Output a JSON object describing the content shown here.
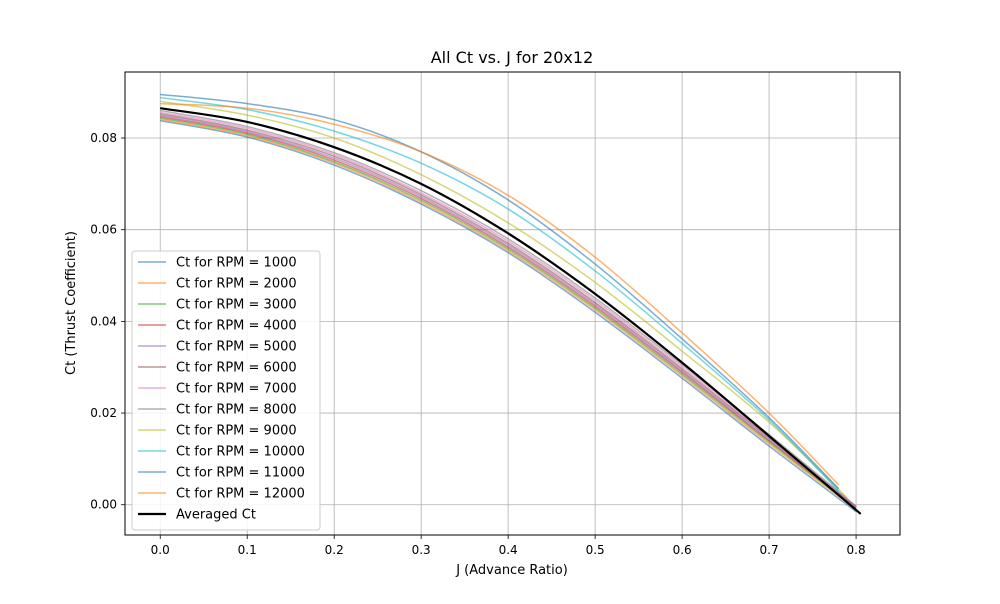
{
  "chart_data": {
    "type": "line",
    "title": "All Ct vs. J for 20x12",
    "xlabel": "J (Advance Ratio)",
    "ylabel": "Ct (Thrust Coefficient)",
    "xlim": [
      -0.0405,
      0.8505
    ],
    "ylim": [
      -0.0066,
      0.0944
    ],
    "xticks": [
      0.0,
      0.1,
      0.2,
      0.3,
      0.4,
      0.5,
      0.6,
      0.7,
      0.8
    ],
    "xtick_labels": [
      "0.0",
      "0.1",
      "0.2",
      "0.3",
      "0.4",
      "0.5",
      "0.6",
      "0.7",
      "0.8"
    ],
    "yticks": [
      0.0,
      0.02,
      0.04,
      0.06,
      0.08
    ],
    "ytick_labels": [
      "0.00",
      "0.02",
      "0.04",
      "0.06",
      "0.08"
    ],
    "grid": true,
    "legend_position": "lower-left",
    "series": [
      {
        "name": "Ct for RPM = 1000",
        "color": "#1f77b4",
        "x": [
          0.0,
          0.1,
          0.2,
          0.3,
          0.4,
          0.5,
          0.6,
          0.7,
          0.8
        ],
        "y": [
          0.0838,
          0.0802,
          0.0741,
          0.0656,
          0.055,
          0.042,
          0.0276,
          0.0128,
          -0.0015
        ]
      },
      {
        "name": "Ct for RPM = 2000",
        "color": "#ff7f0e",
        "x": [
          0.0,
          0.1,
          0.2,
          0.3,
          0.4,
          0.5,
          0.6,
          0.7,
          0.8
        ],
        "y": [
          0.0841,
          0.0805,
          0.0745,
          0.066,
          0.0554,
          0.0425,
          0.0281,
          0.0133,
          -0.001
        ]
      },
      {
        "name": "Ct for RPM = 3000",
        "color": "#2ca02c",
        "x": [
          0.0,
          0.1,
          0.2,
          0.3,
          0.4,
          0.5,
          0.6,
          0.7,
          0.8
        ],
        "y": [
          0.0844,
          0.0808,
          0.0748,
          0.0664,
          0.0558,
          0.0429,
          0.0285,
          0.0137,
          -0.0008
        ]
      },
      {
        "name": "Ct for RPM = 4000",
        "color": "#d62728",
        "x": [
          0.0,
          0.1,
          0.2,
          0.3,
          0.4,
          0.5,
          0.6,
          0.7,
          0.8
        ],
        "y": [
          0.0847,
          0.0811,
          0.0752,
          0.0668,
          0.0562,
          0.0433,
          0.0289,
          0.014,
          -0.0007
        ]
      },
      {
        "name": "Ct for RPM = 5000",
        "color": "#9467bd",
        "x": [
          0.0,
          0.1,
          0.2,
          0.3,
          0.4,
          0.5,
          0.6,
          0.7,
          0.8
        ],
        "y": [
          0.085,
          0.0814,
          0.0756,
          0.0672,
          0.0566,
          0.0437,
          0.0292,
          0.0143,
          -0.0006
        ]
      },
      {
        "name": "Ct for RPM = 6000",
        "color": "#8c564b",
        "x": [
          0.0,
          0.1,
          0.2,
          0.3,
          0.4,
          0.5,
          0.6,
          0.7,
          0.8
        ],
        "y": [
          0.0853,
          0.0817,
          0.076,
          0.0676,
          0.057,
          0.0441,
          0.0296,
          0.0146,
          -0.0005
        ]
      },
      {
        "name": "Ct for RPM = 7000",
        "color": "#e377c2",
        "x": [
          0.0,
          0.1,
          0.2,
          0.3,
          0.4,
          0.5,
          0.6,
          0.7,
          0.8
        ],
        "y": [
          0.0856,
          0.0821,
          0.0764,
          0.068,
          0.0575,
          0.0446,
          0.03,
          0.0149,
          -0.0004
        ]
      },
      {
        "name": "Ct for RPM = 8000",
        "color": "#7f7f7f",
        "x": [
          0.0,
          0.1,
          0.2,
          0.3,
          0.4,
          0.5,
          0.6,
          0.7,
          0.8
        ],
        "y": [
          0.086,
          0.0825,
          0.0768,
          0.0685,
          0.058,
          0.0451,
          0.0305,
          0.0153,
          -0.0003
        ]
      },
      {
        "name": "Ct for RPM = 9000",
        "color": "#bcbd22",
        "x": [
          0.0,
          0.1,
          0.2,
          0.3,
          0.4,
          0.5,
          0.6,
          0.7,
          0.79
        ],
        "y": [
          0.088,
          0.085,
          0.08,
          0.072,
          0.0615,
          0.0485,
          0.0335,
          0.018,
          0.0015
        ]
      },
      {
        "name": "Ct for RPM = 10000",
        "color": "#17becf",
        "x": [
          0.0,
          0.1,
          0.2,
          0.3,
          0.4,
          0.5,
          0.6,
          0.7,
          0.78
        ],
        "y": [
          0.0888,
          0.0862,
          0.0815,
          0.0745,
          0.0645,
          0.051,
          0.0352,
          0.0185,
          0.003
        ]
      },
      {
        "name": "Ct for RPM = 11000",
        "color": "#1f77b4",
        "x": [
          0.0,
          0.1,
          0.2,
          0.3,
          0.4,
          0.5,
          0.6,
          0.7,
          0.78
        ],
        "y": [
          0.0895,
          0.0875,
          0.084,
          0.077,
          0.0665,
          0.0525,
          0.0362,
          0.019,
          0.0035
        ]
      },
      {
        "name": "Ct for RPM = 12000",
        "color": "#ff7f0e",
        "x": [
          0.0,
          0.1,
          0.2,
          0.3,
          0.4,
          0.5,
          0.6,
          0.7,
          0.78
        ],
        "y": [
          0.0875,
          0.0865,
          0.083,
          0.077,
          0.0675,
          0.054,
          0.0375,
          0.02,
          0.0043
        ]
      }
    ],
    "average": {
      "name": "Averaged Ct",
      "color": "#000000",
      "x": [
        0.0,
        0.1,
        0.2,
        0.3,
        0.4,
        0.5,
        0.6,
        0.7,
        0.8053
      ],
      "y": [
        0.0865,
        0.0835,
        0.078,
        0.07,
        0.0592,
        0.046,
        0.031,
        0.015,
        -0.002
      ]
    }
  }
}
